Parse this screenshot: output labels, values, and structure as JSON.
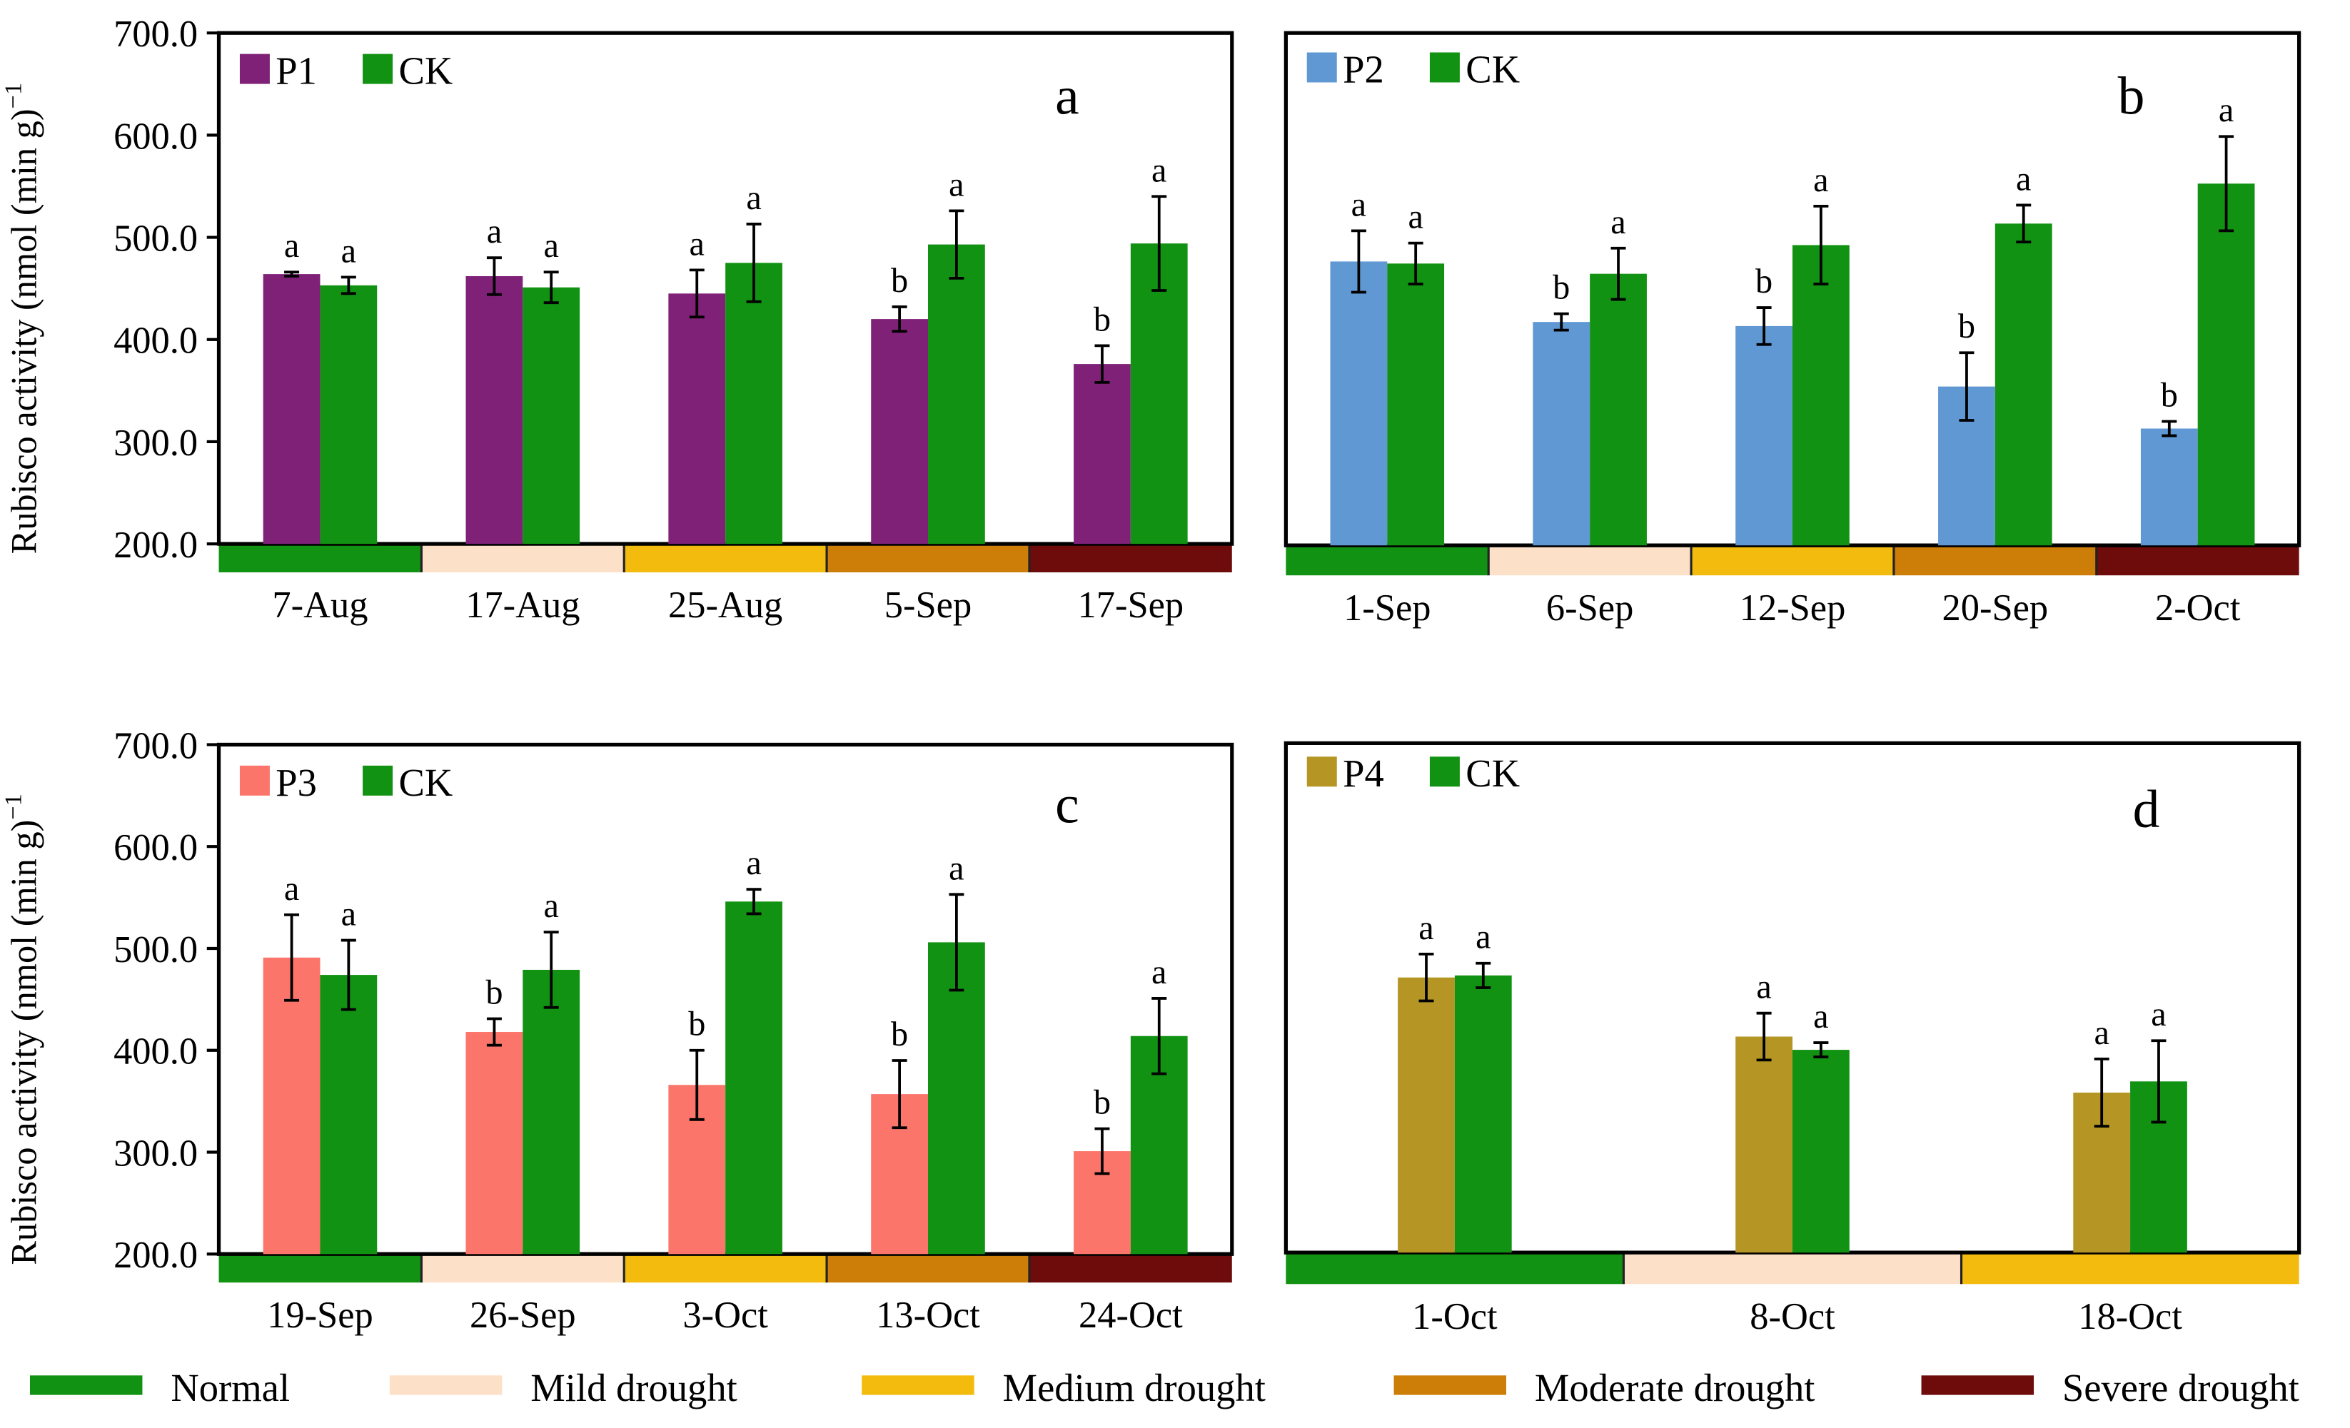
{
  "y_axis_label": "Rubisco activity (nmol (min g)",
  "y_axis_label_sup": "−1",
  "colors": {
    "P1": "#7e2177",
    "P2": "#5f98d2",
    "P3": "#fb756b",
    "P4": "#b59624",
    "CK": "#129212",
    "Normal": "#129212",
    "Mild drought": "#fde0c8",
    "Medium drought": "#f2bb0e",
    "Moderate drought": "#cc7e08",
    "Severe drought": "#6e0c0c"
  },
  "drought_legend": [
    {
      "label": "Normal",
      "color": "#129212"
    },
    {
      "label": "Mild drought",
      "color": "#fde0c8"
    },
    {
      "label": "Medium drought",
      "color": "#f2bb0e"
    },
    {
      "label": "Moderate drought",
      "color": "#cc7e08"
    },
    {
      "label": "Severe drought",
      "color": "#6e0c0c"
    }
  ],
  "chart_data": [
    {
      "type": "bar",
      "panel": "a",
      "ylabel": "Rubisco activity (nmol (min g)−1)",
      "ylim": [
        200,
        700
      ],
      "yticks": [
        "200.0",
        "300.0",
        "400.0",
        "500.0",
        "600.0",
        "700.0"
      ],
      "categories": [
        "7-Aug",
        "17-Aug",
        "25-Aug",
        "5-Sep",
        "17-Sep"
      ],
      "stages": [
        "Normal",
        "Mild drought",
        "Medium drought",
        "Moderate drought",
        "Severe drought"
      ],
      "series": [
        {
          "name": "P1",
          "values": [
            464,
            462,
            445,
            420,
            376
          ],
          "errors": [
            2,
            18,
            23,
            12,
            18
          ],
          "letters": [
            "a",
            "a",
            "a",
            "b",
            "b"
          ]
        },
        {
          "name": "CK",
          "values": [
            453,
            451,
            475,
            493,
            494
          ],
          "errors": [
            8,
            15,
            38,
            33,
            46
          ],
          "letters": [
            "a",
            "a",
            "a",
            "a",
            "a"
          ]
        }
      ]
    },
    {
      "type": "bar",
      "panel": "b",
      "ylabel": "",
      "ylim": [
        200,
        700
      ],
      "categories": [
        "1-Sep",
        "6-Sep",
        "12-Sep",
        "20-Sep",
        "2-Oct"
      ],
      "stages": [
        "Normal",
        "Mild drought",
        "Medium drought",
        "Moderate drought",
        "Severe drought"
      ],
      "series": [
        {
          "name": "P2",
          "values": [
            477,
            418,
            414,
            355,
            314
          ],
          "errors": [
            30,
            8,
            18,
            33,
            7
          ],
          "letters": [
            "a",
            "b",
            "b",
            "b",
            "b"
          ]
        },
        {
          "name": "CK",
          "values": [
            475,
            465,
            493,
            514,
            553
          ],
          "errors": [
            20,
            25,
            38,
            18,
            46
          ],
          "letters": [
            "a",
            "a",
            "a",
            "a",
            "a"
          ]
        }
      ]
    },
    {
      "type": "bar",
      "panel": "c",
      "ylabel": "Rubisco activity (nmol (min g)−1)",
      "ylim": [
        200,
        700
      ],
      "yticks": [
        "200.0",
        "300.0",
        "400.0",
        "500.0",
        "600.0",
        "700.0"
      ],
      "categories": [
        "19-Sep",
        "26-Sep",
        "3-Oct",
        "13-Oct",
        "24-Oct"
      ],
      "stages": [
        "Normal",
        "Mild drought",
        "Medium drought",
        "Moderate drought",
        "Severe drought"
      ],
      "series": [
        {
          "name": "P3",
          "values": [
            491,
            418,
            366,
            357,
            301
          ],
          "errors": [
            42,
            13,
            34,
            33,
            22
          ],
          "letters": [
            "a",
            "b",
            "b",
            "b",
            "b"
          ]
        },
        {
          "name": "CK",
          "values": [
            474,
            479,
            546,
            506,
            414
          ],
          "errors": [
            34,
            37,
            12,
            47,
            37
          ],
          "letters": [
            "a",
            "a",
            "a",
            "a",
            "a"
          ]
        }
      ]
    },
    {
      "type": "bar",
      "panel": "d",
      "ylabel": "",
      "ylim": [
        200,
        700
      ],
      "categories": [
        "1-Oct",
        "8-Oct",
        "18-Oct"
      ],
      "stages": [
        "Normal",
        "Mild drought",
        "Medium drought"
      ],
      "series": [
        {
          "name": "P4",
          "values": [
            470,
            412,
            357
          ],
          "errors": [
            23,
            23,
            33
          ],
          "letters": [
            "a",
            "a",
            "a"
          ]
        },
        {
          "name": "CK",
          "values": [
            472,
            399,
            368
          ],
          "errors": [
            12,
            7,
            40
          ],
          "letters": [
            "a",
            "a",
            "a"
          ]
        }
      ]
    }
  ]
}
